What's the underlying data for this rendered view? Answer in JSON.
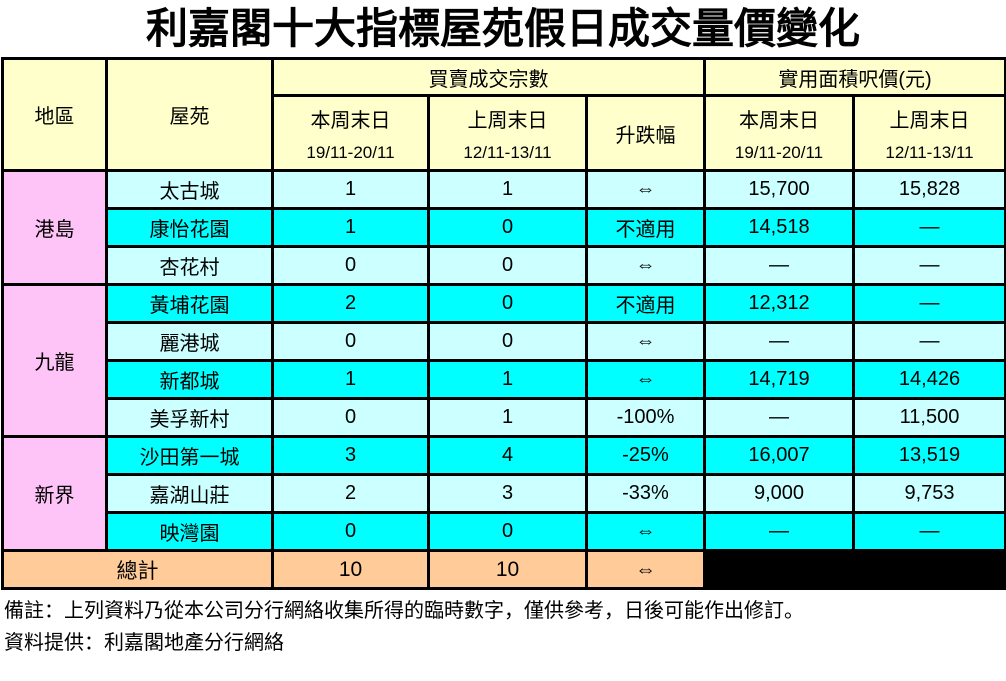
{
  "title": "利嘉閣十大指標屋苑假日成交量價變化",
  "table": {
    "headers": {
      "region": "地區",
      "estate": "屋苑",
      "transactions_group": "買賣成交宗數",
      "price_group": "實用面積呎價(元)",
      "this_weekend": "本周末日",
      "this_weekend_dates": "19/11-20/11",
      "last_weekend": "上周末日",
      "last_weekend_dates": "12/11-13/11",
      "change": "升跌幅"
    },
    "regions": [
      {
        "name": "港島"
      },
      {
        "name": "九龍"
      },
      {
        "name": "新界"
      }
    ],
    "rows": [
      {
        "estate": "太古城",
        "tx_this": "1",
        "tx_last": "1",
        "change": "⇔",
        "price_this": "15,700",
        "price_last": "15,828"
      },
      {
        "estate": "康怡花園",
        "tx_this": "1",
        "tx_last": "0",
        "change": "不適用",
        "price_this": "14,518",
        "price_last": "—"
      },
      {
        "estate": "杏花村",
        "tx_this": "0",
        "tx_last": "0",
        "change": "⇔",
        "price_this": "—",
        "price_last": "—"
      },
      {
        "estate": "黃埔花園",
        "tx_this": "2",
        "tx_last": "0",
        "change": "不適用",
        "price_this": "12,312",
        "price_last": "—"
      },
      {
        "estate": "麗港城",
        "tx_this": "0",
        "tx_last": "0",
        "change": "⇔",
        "price_this": "—",
        "price_last": "—"
      },
      {
        "estate": "新都城",
        "tx_this": "1",
        "tx_last": "1",
        "change": "⇔",
        "price_this": "14,719",
        "price_last": "14,426"
      },
      {
        "estate": "美孚新村",
        "tx_this": "0",
        "tx_last": "1",
        "change": "-100%",
        "price_this": "—",
        "price_last": "11,500"
      },
      {
        "estate": "沙田第一城",
        "tx_this": "3",
        "tx_last": "4",
        "change": "-25%",
        "price_this": "16,007",
        "price_last": "13,519"
      },
      {
        "estate": "嘉湖山莊",
        "tx_this": "2",
        "tx_last": "3",
        "change": "-33%",
        "price_this": "9,000",
        "price_last": "9,753"
      },
      {
        "estate": "映灣園",
        "tx_this": "0",
        "tx_last": "0",
        "change": "⇔",
        "price_this": "—",
        "price_last": "—"
      }
    ],
    "total": {
      "label": "總計",
      "tx_this": "10",
      "tx_last": "10",
      "change": "⇔"
    }
  },
  "footer": {
    "note": "備註：上列資料乃從本公司分行網絡收集所得的臨時數字，僅供參考，日後可能作出修訂。",
    "source": "資料提供：利嘉閣地產分行網絡"
  },
  "colors": {
    "header_bg": "#FFFFCC",
    "region_bg": "#FFC4F7",
    "row_light_bg": "#CCFFFF",
    "row_bright_bg": "#00FFFF",
    "total_bg": "#FFCC99",
    "blank_cell_bg": "#000000",
    "border": "#000000"
  }
}
